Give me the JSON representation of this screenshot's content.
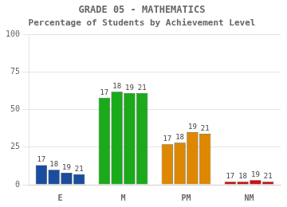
{
  "chart_data": {
    "type": "bar",
    "title": "GRADE 05 - MATHEMATICS",
    "subtitle": "Percentage of Students by Achievement Level",
    "categories": [
      "E",
      "M",
      "PM",
      "NM"
    ],
    "series": [
      {
        "name": "17",
        "colors": [
          "#1a4d9e",
          "#1aaa1a",
          "#dd8800",
          "#cc1111"
        ],
        "values": [
          13,
          58,
          27,
          2
        ]
      },
      {
        "name": "18",
        "colors": [
          "#1a4d9e",
          "#1aaa1a",
          "#dd8800",
          "#cc1111"
        ],
        "values": [
          10,
          62,
          28,
          2
        ]
      },
      {
        "name": "19",
        "colors": [
          "#1a4d9e",
          "#1aaa1a",
          "#dd8800",
          "#cc1111"
        ],
        "values": [
          8,
          61,
          35,
          3
        ]
      },
      {
        "name": "21",
        "colors": [
          "#1a4d9e",
          "#1aaa1a",
          "#dd8800",
          "#cc1111"
        ],
        "values": [
          7,
          61,
          34,
          2
        ]
      }
    ],
    "ylim": [
      0,
      100
    ],
    "yticks": [
      0,
      25,
      50,
      75,
      100
    ],
    "grid": true
  }
}
